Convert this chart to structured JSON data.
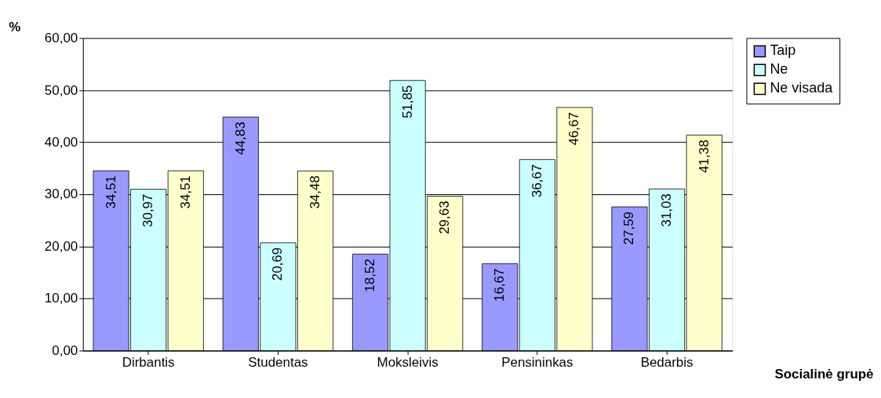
{
  "chart_data": {
    "type": "bar",
    "xlabel": "Socialinė grupė",
    "ylabel": "%",
    "categories": [
      "Dirbantis",
      "Studentas",
      "Moksleivis",
      "Pensininkas",
      "Bedarbis"
    ],
    "series": [
      {
        "name": "Taip",
        "color": "#9999ff",
        "values": [
          34.51,
          44.83,
          18.52,
          16.67,
          27.59
        ],
        "value_labels": [
          "34,51",
          "44,83",
          "18,52",
          "16,67",
          "27,59"
        ]
      },
      {
        "name": "Ne",
        "color": "#ccffff",
        "values": [
          30.97,
          20.69,
          51.85,
          36.67,
          31.03
        ],
        "value_labels": [
          "30,97",
          "20,69",
          "51,85",
          "36,67",
          "31,03"
        ]
      },
      {
        "name": "Ne visada",
        "color": "#ffffcc",
        "values": [
          34.51,
          34.48,
          29.63,
          46.67,
          41.38
        ],
        "value_labels": [
          "34,51",
          "34,48",
          "29,63",
          "46,67",
          "41,38"
        ]
      }
    ],
    "ylim": [
      0,
      60
    ],
    "yticks": [
      {
        "value": 0,
        "label": "0,00"
      },
      {
        "value": 10,
        "label": "10,00"
      },
      {
        "value": 20,
        "label": "20,00"
      },
      {
        "value": 30,
        "label": "30,00"
      },
      {
        "value": 40,
        "label": "40,00"
      },
      {
        "value": 50,
        "label": "50,00"
      },
      {
        "value": 60,
        "label": "60,00"
      }
    ],
    "grid": "y",
    "legend": "right"
  }
}
